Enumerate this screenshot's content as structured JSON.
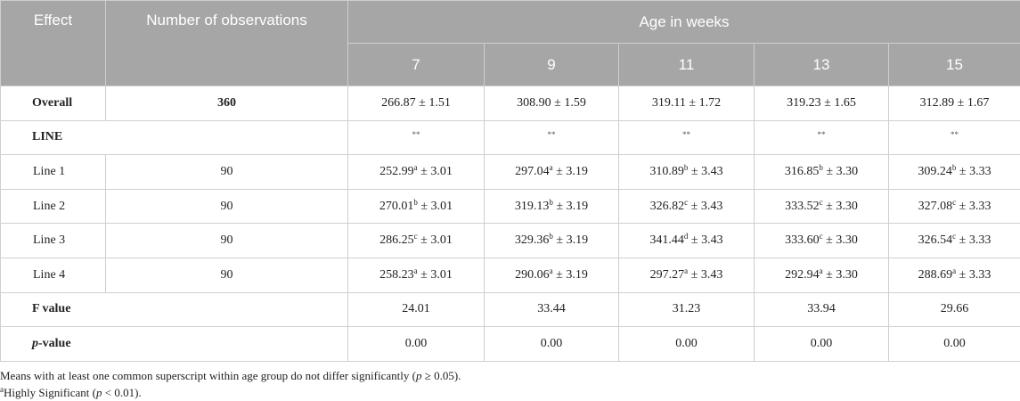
{
  "header": {
    "effect": "Effect",
    "observations": "Number of observations",
    "age": "Age in weeks",
    "weeks": [
      "7",
      "9",
      "11",
      "13",
      "15"
    ]
  },
  "overall": {
    "label": "Overall",
    "observations": "360",
    "cells": [
      "266.87 ± 1.51",
      "308.90 ± 1.59",
      "319.11 ± 1.72",
      "319.23 ± 1.65",
      "312.89 ± 1.67"
    ]
  },
  "line": {
    "label": "LINE",
    "cells": [
      "**",
      "**",
      "**",
      "**",
      "**"
    ],
    "items": [
      {
        "label": "Line 1",
        "observations": "90",
        "cells": [
          [
            "252.99",
            {
              "sup": "a"
            },
            " ± 3.01"
          ],
          [
            "297.04",
            {
              "sup": "a"
            },
            " ± 3.19"
          ],
          [
            "310.89",
            {
              "sup": "b"
            },
            " ± 3.43"
          ],
          [
            "316.85",
            {
              "sup": "b"
            },
            " ± 3.30"
          ],
          [
            "309.24",
            {
              "sup": "b"
            },
            " ± 3.33"
          ]
        ]
      },
      {
        "label": "Line 2",
        "observations": "90",
        "cells": [
          [
            "270.01",
            {
              "sup": "b"
            },
            " ± 3.01"
          ],
          [
            "319.13",
            {
              "sup": "b"
            },
            " ± 3.19"
          ],
          [
            "326.82",
            {
              "sup": "c"
            },
            " ± 3.43"
          ],
          [
            "333.52",
            {
              "sup": "c"
            },
            " ± 3.30"
          ],
          [
            "327.08",
            {
              "sup": "c"
            },
            " ± 3.33"
          ]
        ]
      },
      {
        "label": "Line 3",
        "observations": "90",
        "cells": [
          [
            "286.25",
            {
              "sup": "c"
            },
            " ± 3.01"
          ],
          [
            "329.36",
            {
              "sup": "b"
            },
            " ± 3.19"
          ],
          [
            "341.44",
            {
              "sup": "d"
            },
            " ± 3.43"
          ],
          [
            "333.60",
            {
              "sup": "c"
            },
            " ± 3.30"
          ],
          [
            "326.54",
            {
              "sup": "c"
            },
            " ± 3.33"
          ]
        ]
      },
      {
        "label": "Line 4",
        "observations": "90",
        "cells": [
          [
            "258.23",
            {
              "sup": "a"
            },
            " ± 3.01"
          ],
          [
            "290.06",
            {
              "sup": "a"
            },
            " ± 3.19"
          ],
          [
            "297.27",
            {
              "sup": "a"
            },
            " ± 3.43"
          ],
          [
            "292.94",
            {
              "sup": "a"
            },
            " ± 3.30"
          ],
          [
            "288.69",
            {
              "sup": "a"
            },
            " ± 3.33"
          ]
        ]
      }
    ]
  },
  "f_value": {
    "label": "F value",
    "cells": [
      "24.01",
      "33.44",
      "31.23",
      "33.94",
      "29.66"
    ]
  },
  "p_value": {
    "label": [
      {
        "italic": "p"
      },
      "-value"
    ],
    "cells": [
      "0.00",
      "0.00",
      "0.00",
      "0.00",
      "0.00"
    ]
  },
  "footnotes": [
    [
      "Means with at least one common superscript within age group do not differ significantly (",
      {
        "italic": "p"
      },
      " ≥ 0.05)."
    ],
    [
      {
        "sup": "a"
      },
      "Highly Significant (",
      {
        "italic": "p"
      },
      " < 0.01)."
    ]
  ]
}
